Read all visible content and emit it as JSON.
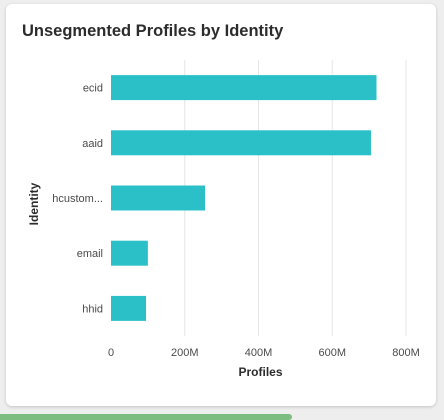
{
  "card": {
    "title": "Unsegmented Profiles by Identity"
  },
  "chart_data": {
    "type": "bar",
    "orientation": "horizontal",
    "title": "Unsegmented Profiles by Identity",
    "xlabel": "Profiles",
    "ylabel": "Identity",
    "categories": [
      "ecid",
      "aaid",
      "hcustom...",
      "email",
      "hhid"
    ],
    "values": [
      720000000,
      705000000,
      255000000,
      100000000,
      95000000
    ],
    "xlim": [
      0,
      800000000
    ],
    "xticks": [
      0,
      200000000,
      400000000,
      600000000,
      800000000
    ],
    "xtick_labels": [
      "0",
      "200M",
      "400M",
      "600M",
      "800M"
    ],
    "grid": "vertical",
    "legend": "none",
    "bar_color": "#2bc0c8",
    "grid_color": "#e6e6e6"
  },
  "footer": {
    "progress_color": "#7dbd7f"
  }
}
